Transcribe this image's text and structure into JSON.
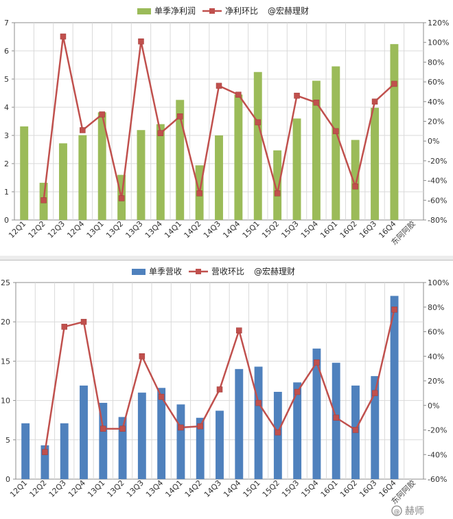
{
  "chart_data": [
    {
      "type": "bar",
      "title": "",
      "categories": [
        "12Q1",
        "12Q2",
        "12Q3",
        "12Q4",
        "13Q1",
        "13Q2",
        "13Q3",
        "13Q4",
        "14Q1",
        "14Q2",
        "14Q3",
        "14Q4",
        "15Q1",
        "15Q2",
        "15Q3",
        "15Q4",
        "16Q1",
        "16Q2",
        "16Q3",
        "16Q4"
      ],
      "series": [
        {
          "name": "单季净利润",
          "type": "bar",
          "axis": "left",
          "color": "#9bbb59",
          "values": [
            3.32,
            1.32,
            2.72,
            3.01,
            3.82,
            1.6,
            3.19,
            3.4,
            4.26,
            1.94,
            3.0,
            4.45,
            5.25,
            2.47,
            3.6,
            4.94,
            5.45,
            2.84,
            3.98,
            6.24
          ]
        },
        {
          "name": "净利环比",
          "type": "line",
          "axis": "right",
          "color": "#c0504d",
          "values": [
            null,
            -60,
            106,
            11,
            27,
            -58,
            101,
            8,
            25,
            -53,
            56,
            47,
            19,
            -53,
            46,
            39,
            10,
            -46,
            40,
            58
          ]
        }
      ],
      "ylim": [
        0,
        7
      ],
      "yticks": [
        "0",
        "1",
        "2",
        "3",
        "4",
        "5",
        "6",
        "7"
      ],
      "y2lim": [
        -80,
        120
      ],
      "y2ticks": [
        "-80%",
        "-60%",
        "-40%",
        "-20%",
        "0%",
        "20%",
        "40%",
        "60%",
        "80%",
        "100%",
        "120%"
      ],
      "legend": [
        "单季净利润",
        "净利环比",
        "@宏赫理财"
      ],
      "legend_position": "top",
      "grid": true,
      "stamp": "东阿阿胶"
    },
    {
      "type": "bar",
      "title": "",
      "categories": [
        "12Q1",
        "12Q2",
        "12Q3",
        "12Q4",
        "13Q1",
        "13Q2",
        "13Q3",
        "13Q4",
        "14Q1",
        "14Q2",
        "14Q3",
        "14Q4",
        "15Q1",
        "15Q2",
        "15Q3",
        "15Q4",
        "16Q1",
        "16Q2",
        "16Q3",
        "16Q4"
      ],
      "series": [
        {
          "name": "单季营收",
          "type": "bar",
          "axis": "left",
          "color": "#4f81bd",
          "values": [
            7.1,
            4.3,
            7.1,
            11.9,
            9.7,
            7.9,
            11.0,
            11.6,
            9.5,
            7.8,
            8.7,
            14.0,
            14.3,
            11.1,
            12.3,
            16.6,
            14.8,
            11.9,
            13.1,
            23.3
          ]
        },
        {
          "name": "营收环比",
          "type": "line",
          "axis": "right",
          "color": "#c0504d",
          "values": [
            null,
            -38,
            64,
            68,
            -19,
            -19,
            40,
            7,
            -18,
            -17,
            13,
            61,
            2,
            -22,
            11,
            35,
            -10,
            -20,
            10,
            78
          ]
        }
      ],
      "ylim": [
        0,
        25
      ],
      "yticks": [
        "0",
        "5",
        "10",
        "15",
        "20",
        "25"
      ],
      "y2lim": [
        -60,
        100
      ],
      "y2ticks": [
        "-60%",
        "-40%",
        "-20%",
        "0%",
        "20%",
        "40%",
        "60%",
        "80%",
        "100%"
      ],
      "legend": [
        "单季营收",
        "营收环比",
        "@宏赫理财"
      ],
      "legend_position": "top",
      "grid": true,
      "stamp": "东阿阿胶"
    }
  ],
  "watermark": {
    "text": "赫师",
    "symbol": "@"
  }
}
